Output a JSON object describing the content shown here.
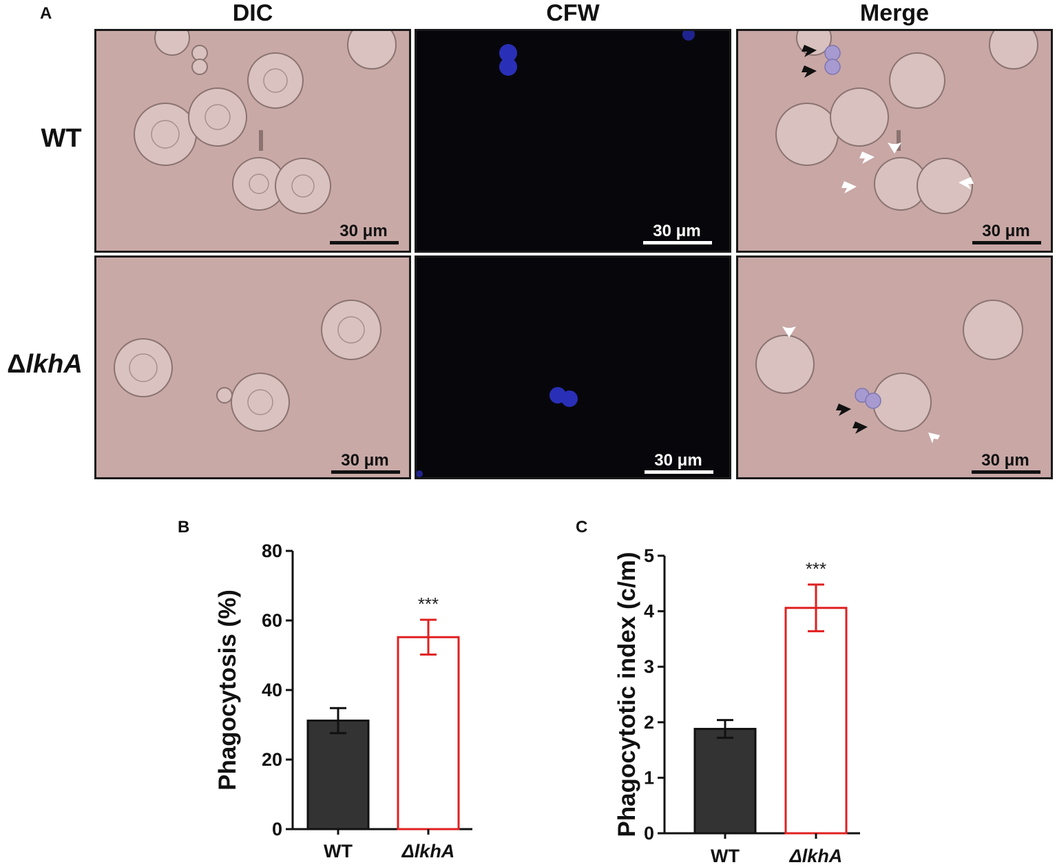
{
  "figure": {
    "panel_a": {
      "letter": "A",
      "columns": [
        "DIC",
        "CFW",
        "Merge"
      ],
      "rows": [
        {
          "label": "WT",
          "label_prefix": "",
          "italic": false
        },
        {
          "label": "lkhA",
          "label_prefix": "Δ",
          "italic": true
        }
      ],
      "scale_bar_label": "30 μm",
      "arrow_colors": {
        "internalized": "#ffffff",
        "adherent": "#111111"
      },
      "background_colors": {
        "dic": "#c9a9a6",
        "cfw": "#07070b",
        "merge": "#c8a7a5"
      }
    },
    "panel_b": {
      "letter": "B"
    },
    "panel_c": {
      "letter": "C"
    }
  },
  "chart_data": [
    {
      "type": "bar",
      "panel": "B",
      "categories": [
        "WT",
        "ΔlkhA"
      ],
      "values": [
        31.2,
        55.2
      ],
      "errors": [
        3.6,
        5.0
      ],
      "significance": [
        "",
        "***"
      ],
      "ylabel": "Phagocytosis (%)",
      "xlabel": "",
      "ylim": [
        0,
        80
      ],
      "yticks": [
        0,
        20,
        40,
        60,
        80
      ],
      "bar_styles": [
        {
          "fill": "#333333",
          "stroke": "#111111"
        },
        {
          "fill": "#ffffff",
          "stroke": "#e02020"
        }
      ]
    },
    {
      "type": "bar",
      "panel": "C",
      "categories": [
        "WT",
        "ΔlkhA"
      ],
      "values": [
        1.88,
        4.06
      ],
      "errors": [
        0.16,
        0.42
      ],
      "significance": [
        "",
        "***"
      ],
      "ylabel": "Phagocytotic index (c/m)",
      "xlabel": "",
      "ylim": [
        0,
        5
      ],
      "yticks": [
        0,
        1,
        2,
        3,
        4,
        5
      ],
      "bar_styles": [
        {
          "fill": "#333333",
          "stroke": "#111111"
        },
        {
          "fill": "#ffffff",
          "stroke": "#e02020"
        }
      ]
    }
  ]
}
